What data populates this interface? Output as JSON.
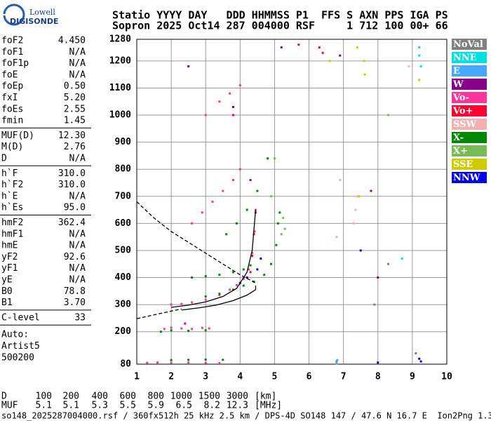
{
  "logo": {
    "line1": "Lowell",
    "line2": "DIGISONDE"
  },
  "header": {
    "row1": "Statio YYYY DAY   DDD HHMMSS P1  FFS S AXN PPS IGA PS",
    "row2": "Sopron 2025 Oct14 287 004000 RSF     1 712 100 00+ 66"
  },
  "params": [
    [
      [
        "foF2",
        "4.450"
      ],
      [
        "foF1",
        "N/A"
      ],
      [
        "foF1p",
        "N/A"
      ],
      [
        "foE",
        "N/A"
      ],
      [
        "foEp",
        "0.50"
      ],
      [
        "fxI",
        "5.20"
      ],
      [
        "foEs",
        "2.55"
      ],
      [
        "fmin",
        "1.45"
      ]
    ],
    [
      [
        "MUF(D)",
        "12.30"
      ],
      [
        "M(D)",
        "2.76"
      ],
      [
        "D",
        "N/A"
      ]
    ],
    [
      [
        "h`F",
        "310.0"
      ],
      [
        "h`F2",
        "310.0"
      ],
      [
        "h`E",
        "N/A"
      ],
      [
        "h`Es",
        "95.0"
      ]
    ],
    [
      [
        "hmF2",
        "362.4"
      ],
      [
        "hmF1",
        "N/A"
      ],
      [
        "hmE",
        "N/A"
      ],
      [
        "yF2",
        "92.6"
      ],
      [
        "yF1",
        "N/A"
      ],
      [
        "yE",
        "N/A"
      ],
      [
        "B0",
        "78.8"
      ],
      [
        "B1",
        "3.70"
      ]
    ],
    [
      [
        "C-level",
        "33"
      ]
    ]
  ],
  "auto": [
    "Auto:",
    "Artist5",
    "500200"
  ],
  "muf_table": [
    [
      "D",
      "100",
      "200",
      "400",
      "600",
      "800",
      "1000",
      "1500",
      "3000",
      "[km]"
    ],
    [
      "MUF",
      "5.1",
      "5.1",
      "5.3",
      "5.5",
      "5.9",
      "6.5",
      "8.2",
      "12.3",
      "[MHz]"
    ]
  ],
  "footer": "so148_2025287004000.rsf / 360fx512h 25 kHz 2.5 km / DPS-4D SO148 147 / 47.6 N 16.7 E  Ion2Png 1.3.20",
  "chart_data": {
    "type": "scatter",
    "xlim": [
      1,
      10
    ],
    "xticks": [
      1,
      2,
      3,
      4,
      5,
      6,
      7,
      8,
      9,
      10
    ],
    "ylim": [
      80,
      1280
    ],
    "yticks": [
      80,
      200,
      300,
      400,
      500,
      600,
      700,
      800,
      900,
      1000,
      1100,
      1200,
      1280
    ],
    "grid": true,
    "series": [
      {
        "name": "NoVal",
        "color": "#808080",
        "x": [
          6.8,
          7.9,
          8.3,
          9.1
        ],
        "values": [
          90,
          300,
          450,
          120
        ]
      },
      {
        "name": "NNE",
        "color": "#00e0e0",
        "x": [
          8.7,
          9.2,
          9.25
        ],
        "values": [
          470,
          1220,
          1180
        ]
      },
      {
        "name": "E",
        "color": "#44aaff",
        "x": [
          6.8,
          6.82,
          9.2
        ],
        "values": [
          82,
          95,
          1250
        ]
      },
      {
        "name": "W",
        "color": "#880088",
        "x": [
          2.5,
          3.8,
          4.3,
          5.2,
          6.9,
          7.8,
          8.0
        ],
        "values": [
          1180,
          1030,
          760,
          1250,
          1220,
          720,
          400
        ]
      },
      {
        "name": "Vo-",
        "color": "#ff3399",
        "x": [
          2.0,
          2.3,
          2.6,
          3.0,
          3.4,
          3.7,
          3.9,
          4.1,
          4.25,
          4.35,
          4.42,
          4.45,
          2.6,
          2.9,
          3.2,
          3.5,
          3.8,
          4.0,
          3.0,
          3.4,
          3.7,
          4.0,
          1.8,
          2.0,
          2.3,
          2.6,
          2.9,
          3.1,
          1.3,
          1.6,
          2.0,
          2.5,
          3.0,
          3.4
        ],
        "values": [
          300,
          302,
          308,
          318,
          335,
          355,
          372,
          395,
          430,
          490,
          570,
          650,
          600,
          640,
          680,
          720,
          760,
          800,
          1000,
          1050,
          1080,
          1110,
          210,
          215,
          212,
          210,
          214,
          212,
          85,
          86,
          85,
          86,
          85,
          84
        ]
      },
      {
        "name": "Vo+",
        "color": "#ff0033",
        "x": [
          4.3,
          4.35,
          4.4,
          4.45,
          5.7,
          6.3,
          6.4,
          3.8,
          2.4
        ],
        "values": [
          420,
          480,
          560,
          640,
          1260,
          1250,
          1230,
          1000,
          230
        ]
      },
      {
        "name": "SSW",
        "color": "#f4b0b0",
        "x": [
          7.3,
          7.35,
          7.4,
          6.9,
          6.8,
          8.9
        ],
        "values": [
          600,
          650,
          700,
          760,
          550,
          1180
        ]
      },
      {
        "name": "X-",
        "color": "#008800",
        "x": [
          3.0,
          3.4,
          3.8,
          4.1,
          4.4,
          4.7,
          4.9,
          5.05,
          5.1,
          5.15,
          2.6,
          3.0,
          3.4,
          3.8,
          4.1,
          4.3,
          3.6,
          3.9,
          4.2,
          4.5,
          4.8,
          1.7,
          2.0,
          2.5,
          3.0,
          2.0,
          2.5,
          3.0,
          3.5
        ],
        "values": [
          330,
          340,
          355,
          370,
          385,
          410,
          450,
          520,
          600,
          640,
          400,
          405,
          410,
          420,
          430,
          445,
          560,
          600,
          650,
          720,
          840,
          200,
          205,
          203,
          205,
          95,
          96,
          97,
          96
        ]
      },
      {
        "name": "X+",
        "color": "#77bb55",
        "x": [
          5.2,
          5.25,
          5.3,
          4.9,
          5.0,
          8.3
        ],
        "values": [
          560,
          620,
          580,
          700,
          840,
          1000
        ]
      },
      {
        "name": "SSE",
        "color": "#cccc00",
        "x": [
          6.6,
          7.4,
          7.45,
          7.6,
          7.62,
          9.2
        ],
        "values": [
          1200,
          1250,
          700,
          1200,
          1150,
          1130
        ]
      },
      {
        "name": "NNW",
        "color": "#0000ee",
        "x": [
          4.0,
          4.2,
          4.5,
          4.6,
          9.2,
          9.25,
          8.0,
          7.5
        ],
        "values": [
          380,
          400,
          430,
          470,
          100,
          90,
          86,
          500
        ]
      }
    ],
    "curves": [
      {
        "style": "solid",
        "x": [
          2.0,
          2.5,
          3.0,
          3.5,
          3.9,
          4.2,
          4.35,
          4.45
        ],
        "values": [
          290,
          298,
          310,
          330,
          360,
          420,
          500,
          650
        ]
      },
      {
        "style": "solid",
        "x": [
          2.3,
          2.8,
          3.3,
          3.8,
          4.2,
          4.45,
          4.45
        ],
        "values": [
          280,
          288,
          298,
          315,
          335,
          355,
          370
        ]
      },
      {
        "style": "dashed",
        "x": [
          1.0,
          1.5,
          2.0,
          2.5,
          3.0,
          3.5,
          4.0,
          4.45
        ],
        "values": [
          680,
          620,
          570,
          530,
          490,
          450,
          410,
          380
        ]
      },
      {
        "style": "dashed",
        "x": [
          1.0,
          1.5,
          2.0,
          2.3
        ],
        "values": [
          248,
          262,
          276,
          284
        ]
      }
    ]
  }
}
